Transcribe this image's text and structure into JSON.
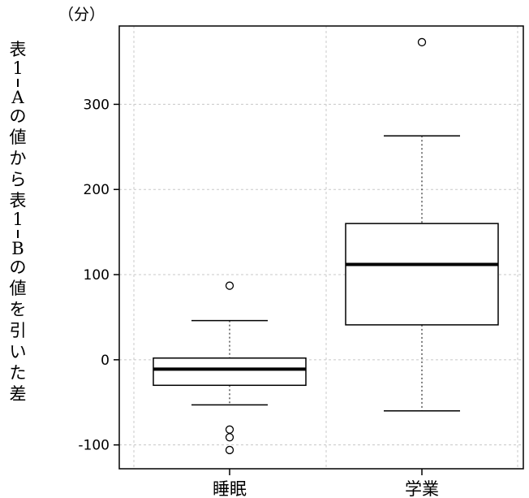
{
  "chart_data": {
    "type": "box",
    "unit_label": "（分）",
    "ylabel": "表1-Aの値から表1-Bの値を引いた差",
    "ylim": [
      -128,
      392
    ],
    "yticks": [
      -100,
      0,
      100,
      200,
      300
    ],
    "ytick_labels": [
      "-100",
      "0",
      "100",
      "200",
      "300"
    ],
    "grid": true,
    "categories": [
      "睡眠",
      "学業"
    ],
    "boxes": [
      {
        "category": "睡眠",
        "whisker_low": -53,
        "q1": -30,
        "median": -11,
        "q3": 2,
        "whisker_high": 46,
        "outliers": [
          87,
          -82,
          -91,
          -106
        ]
      },
      {
        "category": "学業",
        "whisker_low": -60,
        "q1": 41,
        "median": 112,
        "q3": 160,
        "whisker_high": 263,
        "outliers": [
          373
        ]
      }
    ]
  }
}
